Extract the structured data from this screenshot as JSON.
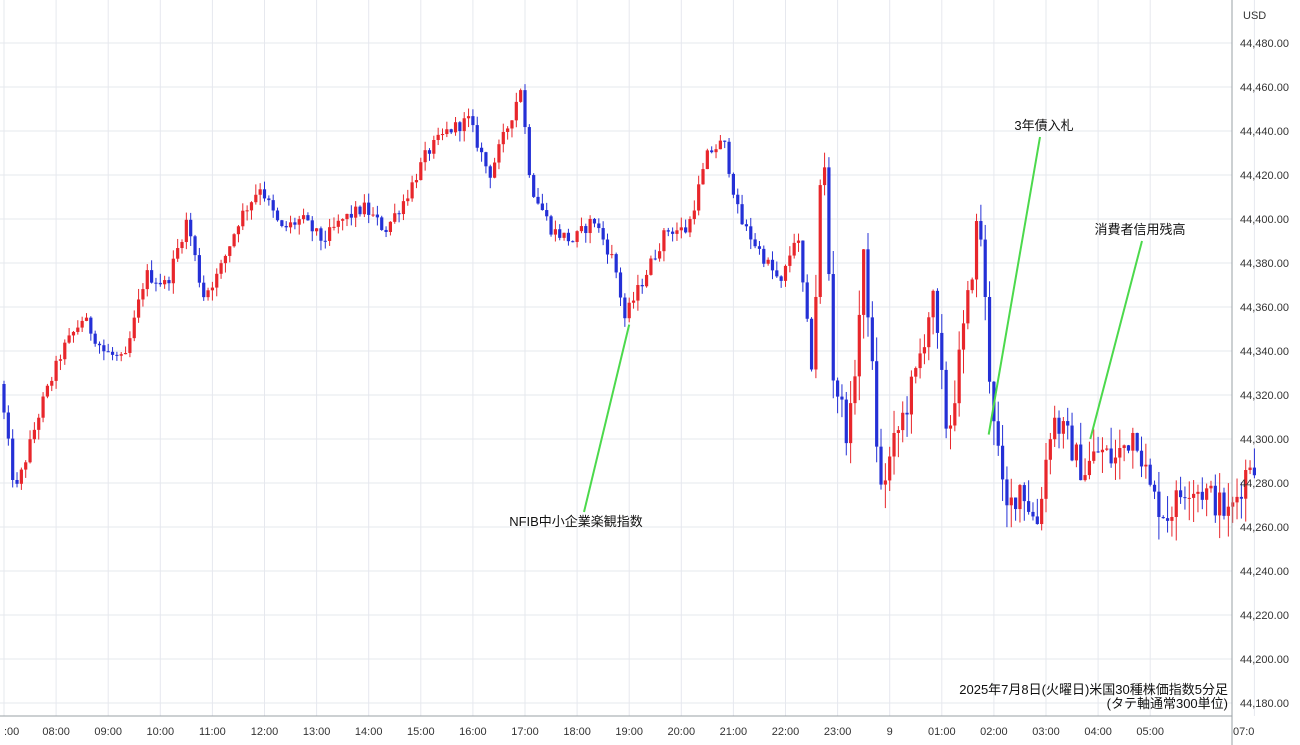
{
  "chart_data": {
    "type": "candlestick",
    "currency": "USD",
    "caption_line1": "2025年7月8日(火曜日)米国30種株価指数5分足",
    "caption_line2": "(タテ軸通常300単位)",
    "y_ticks": [
      44480,
      44460,
      44440,
      44420,
      44400,
      44380,
      44360,
      44340,
      44320,
      44300,
      44280,
      44260,
      44240,
      44220,
      44200,
      44180
    ],
    "y_tick_labels": [
      "44,480.00",
      "44,460.00",
      "44,440.00",
      "44,420.00",
      "44,400.00",
      "44,380.00",
      "44,360.00",
      "44,340.00",
      "44,320.00",
      "44,300.00",
      "44,280.00",
      "44,260.00",
      "44,240.00",
      "44,220.00",
      "44,200.00",
      "44,180.00"
    ],
    "x_ticks": [
      {
        "label": ":00",
        "hours": 7
      },
      {
        "label": "08:00",
        "hours": 8
      },
      {
        "label": "09:00",
        "hours": 9
      },
      {
        "label": "10:00",
        "hours": 10
      },
      {
        "label": "11:00",
        "hours": 11
      },
      {
        "label": "12:00",
        "hours": 12
      },
      {
        "label": "13:00",
        "hours": 13
      },
      {
        "label": "14:00",
        "hours": 14
      },
      {
        "label": "15:00",
        "hours": 15
      },
      {
        "label": "16:00",
        "hours": 16
      },
      {
        "label": "17:00",
        "hours": 17
      },
      {
        "label": "18:00",
        "hours": 18
      },
      {
        "label": "19:00",
        "hours": 19
      },
      {
        "label": "20:00",
        "hours": 20
      },
      {
        "label": "21:00",
        "hours": 21
      },
      {
        "label": "22:00",
        "hours": 22
      },
      {
        "label": "23:00",
        "hours": 23
      },
      {
        "label": "9",
        "hours": 24
      },
      {
        "label": "01:00",
        "hours": 25
      },
      {
        "label": "02:00",
        "hours": 26
      },
      {
        "label": "03:00",
        "hours": 27
      },
      {
        "label": "04:00",
        "hours": 28
      },
      {
        "label": "05:00",
        "hours": 29
      },
      {
        "label": "07:0",
        "hours": 31
      }
    ],
    "key_points": [
      {
        "hours": 7.0,
        "price": 44325
      },
      {
        "hours": 7.3,
        "price": 44275
      },
      {
        "hours": 7.8,
        "price": 44315
      },
      {
        "hours": 8.2,
        "price": 44340
      },
      {
        "hours": 8.6,
        "price": 44355
      },
      {
        "hours": 9.0,
        "price": 44340
      },
      {
        "hours": 9.4,
        "price": 44335
      },
      {
        "hours": 9.8,
        "price": 44375
      },
      {
        "hours": 10.2,
        "price": 44370
      },
      {
        "hours": 10.6,
        "price": 44400
      },
      {
        "hours": 10.9,
        "price": 44365
      },
      {
        "hours": 11.2,
        "price": 44375
      },
      {
        "hours": 11.6,
        "price": 44400
      },
      {
        "hours": 12.0,
        "price": 44415
      },
      {
        "hours": 12.4,
        "price": 44395
      },
      {
        "hours": 12.8,
        "price": 44400
      },
      {
        "hours": 13.2,
        "price": 44390
      },
      {
        "hours": 13.6,
        "price": 44400
      },
      {
        "hours": 14.0,
        "price": 44405
      },
      {
        "hours": 14.4,
        "price": 44395
      },
      {
        "hours": 14.8,
        "price": 44410
      },
      {
        "hours": 15.2,
        "price": 44430
      },
      {
        "hours": 15.6,
        "price": 44440
      },
      {
        "hours": 16.0,
        "price": 44445
      },
      {
        "hours": 16.4,
        "price": 44420
      },
      {
        "hours": 16.8,
        "price": 44445
      },
      {
        "hours": 17.0,
        "price": 44460
      },
      {
        "hours": 17.2,
        "price": 44415
      },
      {
        "hours": 17.6,
        "price": 44395
      },
      {
        "hours": 18.0,
        "price": 44390
      },
      {
        "hours": 18.4,
        "price": 44400
      },
      {
        "hours": 18.8,
        "price": 44380
      },
      {
        "hours": 19.0,
        "price": 44355
      },
      {
        "hours": 19.4,
        "price": 44375
      },
      {
        "hours": 19.8,
        "price": 44395
      },
      {
        "hours": 20.2,
        "price": 44395
      },
      {
        "hours": 20.6,
        "price": 44430
      },
      {
        "hours": 20.9,
        "price": 44435
      },
      {
        "hours": 21.2,
        "price": 44400
      },
      {
        "hours": 21.6,
        "price": 44385
      },
      {
        "hours": 22.0,
        "price": 44370
      },
      {
        "hours": 22.3,
        "price": 44395
      },
      {
        "hours": 22.6,
        "price": 44330
      },
      {
        "hours": 22.8,
        "price": 44440
      },
      {
        "hours": 23.0,
        "price": 44330
      },
      {
        "hours": 23.3,
        "price": 44300
      },
      {
        "hours": 23.6,
        "price": 44385
      },
      {
        "hours": 23.9,
        "price": 44275
      },
      {
        "hours": 24.2,
        "price": 44300
      },
      {
        "hours": 24.6,
        "price": 44330
      },
      {
        "hours": 24.9,
        "price": 44365
      },
      {
        "hours": 25.2,
        "price": 44300
      },
      {
        "hours": 25.6,
        "price": 44365
      },
      {
        "hours": 25.8,
        "price": 44405
      },
      {
        "hours": 26.0,
        "price": 44330
      },
      {
        "hours": 26.3,
        "price": 44265
      },
      {
        "hours": 26.6,
        "price": 44280
      },
      {
        "hours": 26.9,
        "price": 44260
      },
      {
        "hours": 27.2,
        "price": 44310
      },
      {
        "hours": 27.5,
        "price": 44300
      },
      {
        "hours": 27.8,
        "price": 44285
      },
      {
        "hours": 28.1,
        "price": 44295
      },
      {
        "hours": 28.4,
        "price": 44290
      },
      {
        "hours": 28.8,
        "price": 44305
      },
      {
        "hours": 29.1,
        "price": 44275
      },
      {
        "hours": 29.4,
        "price": 44265
      },
      {
        "hours": 29.8,
        "price": 44280
      },
      {
        "hours": 30.2,
        "price": 44275
      },
      {
        "hours": 30.6,
        "price": 44265
      },
      {
        "hours": 31.0,
        "price": 44290
      }
    ],
    "annotations": [
      {
        "text": "NFIB中小企業楽観指数",
        "at_hours": 19.0,
        "at_price": 44352
      },
      {
        "text": "3年債入札",
        "at_hours": 25.9,
        "at_price": 44302
      },
      {
        "text": "消費者信用残高",
        "at_hours": 27.85,
        "at_price": 44300
      }
    ],
    "colors": {
      "up": "#e8262b",
      "down": "#2430d6",
      "grid": "#e6e8ee",
      "annotation_line": "#4cd94c",
      "axis": "#9aa0a6"
    }
  }
}
